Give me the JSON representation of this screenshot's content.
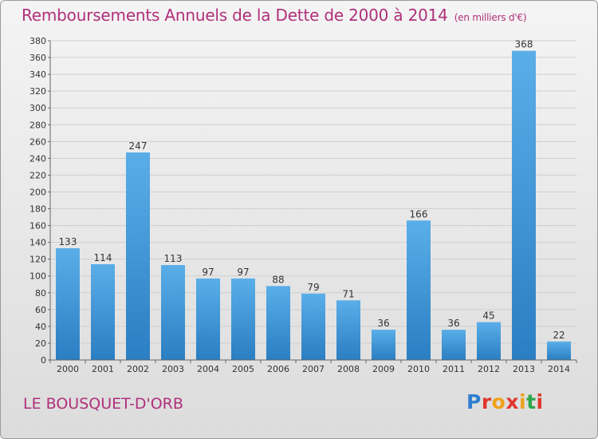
{
  "title": "Remboursements Annuels de la Dette de 2000 à 2014",
  "unit_note": "(en milliers d'€)",
  "place": "LE BOUSQUET-D'ORB",
  "logo": {
    "text": "Proxiti",
    "colors": [
      "#2f7fd0",
      "#e0362c",
      "#f0a21a",
      "#e0362c",
      "#f0a21a",
      "#2fa64a",
      "#e0362c"
    ]
  },
  "colors": {
    "title": "#b0307a",
    "bar_light": "#5aaee8",
    "bar_dark": "#2a7ec2"
  },
  "chart_data": {
    "type": "bar",
    "title": "Remboursements Annuels de la Dette de 2000 à 2014",
    "xlabel": "",
    "ylabel": "",
    "categories": [
      "2000",
      "2001",
      "2002",
      "2003",
      "2004",
      "2005",
      "2006",
      "2007",
      "2008",
      "2009",
      "2010",
      "2011",
      "2012",
      "2013",
      "2014"
    ],
    "values": [
      133,
      114,
      247,
      113,
      97,
      97,
      88,
      79,
      71,
      36,
      166,
      36,
      45,
      368,
      22
    ],
    "ylim": [
      0,
      380
    ],
    "yticks": [
      0,
      20,
      40,
      60,
      80,
      100,
      120,
      140,
      160,
      180,
      200,
      220,
      240,
      260,
      280,
      300,
      320,
      340,
      360,
      380
    ],
    "grid": true,
    "legend": "none"
  }
}
